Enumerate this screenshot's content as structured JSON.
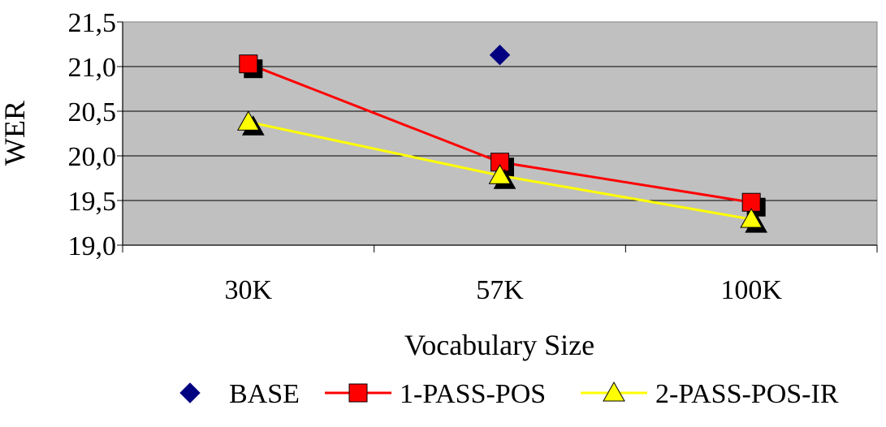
{
  "chart_data": {
    "type": "line",
    "title": "",
    "xlabel": "Vocabulary Size",
    "ylabel": "WER",
    "categories": [
      "30K",
      "57K",
      "100K"
    ],
    "ylim": [
      19.0,
      21.5
    ],
    "yticks": [
      19.0,
      19.5,
      20.0,
      20.5,
      21.0,
      21.5
    ],
    "ytick_labels": [
      "19,0",
      "19,5",
      "20,0",
      "20,5",
      "21,0",
      "21,5"
    ],
    "grid": true,
    "legend_position": "bottom",
    "plot_background": "#c0c0c0",
    "series": [
      {
        "name": "BASE",
        "values": [
          null,
          21.13,
          null
        ],
        "color": "#000080",
        "marker": "diamond",
        "line": false
      },
      {
        "name": "1-PASS-POS",
        "values": [
          21.03,
          19.93,
          19.48
        ],
        "color": "#ff0000",
        "marker": "square",
        "line": true
      },
      {
        "name": "2-PASS-POS-IR",
        "values": [
          20.38,
          19.78,
          19.29
        ],
        "color": "#ffff00",
        "marker": "triangle",
        "line": true
      }
    ]
  }
}
